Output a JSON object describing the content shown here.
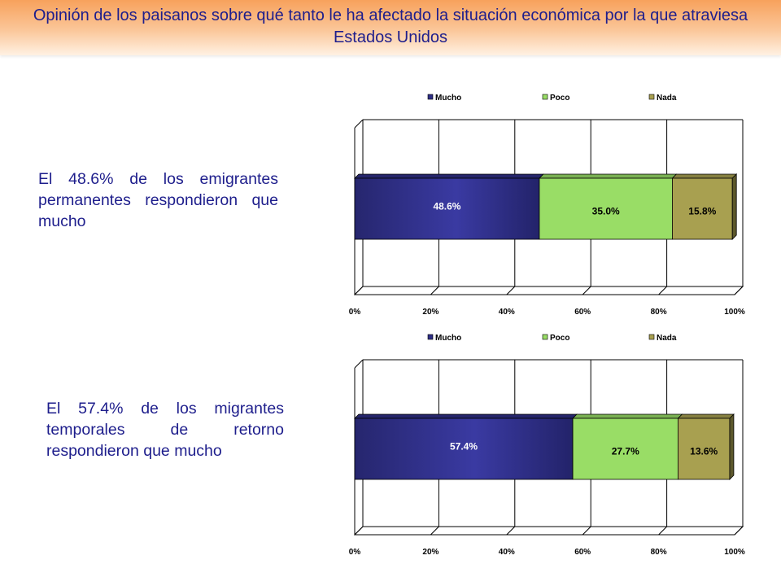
{
  "header": {
    "title": "Opinión de los paisanos sobre qué tanto le ha afectado la situación económica por la que atraviesa Estados Unidos"
  },
  "captions": [
    "El 48.6% de los emigrantes permanentes respondieron que mucho",
    "El 57.4% de los migrantes temporales de retorno respondieron que mucho"
  ],
  "colors": {
    "title_text": "#1e1e8c",
    "mucho": "#2e2e86",
    "poco": "#99dd66",
    "nada": "#a8a050"
  },
  "chart_data": [
    {
      "type": "bar",
      "orientation": "horizontal",
      "stacked": "100%",
      "categories": [
        ""
      ],
      "series": [
        {
          "name": "Mucho",
          "values": [
            48.6
          ],
          "label": "48.6%"
        },
        {
          "name": "Poco",
          "values": [
            35.0
          ],
          "label": "35.0%"
        },
        {
          "name": "Nada",
          "values": [
            15.8
          ],
          "label": "15.8%"
        }
      ],
      "xlim": [
        0,
        100
      ],
      "xticks": [
        "0%",
        "20%",
        "40%",
        "60%",
        "80%",
        "100%"
      ],
      "grid": true,
      "legend": "top"
    },
    {
      "type": "bar",
      "orientation": "horizontal",
      "stacked": "100%",
      "categories": [
        ""
      ],
      "series": [
        {
          "name": "Mucho",
          "values": [
            57.4
          ],
          "label": "57.4%"
        },
        {
          "name": "Poco",
          "values": [
            27.7
          ],
          "label": "27.7%"
        },
        {
          "name": "Nada",
          "values": [
            13.6
          ],
          "label": "13.6%"
        }
      ],
      "xlim": [
        0,
        100
      ],
      "xticks": [
        "0%",
        "20%",
        "40%",
        "60%",
        "80%",
        "100%"
      ],
      "grid": true,
      "legend": "top"
    }
  ]
}
